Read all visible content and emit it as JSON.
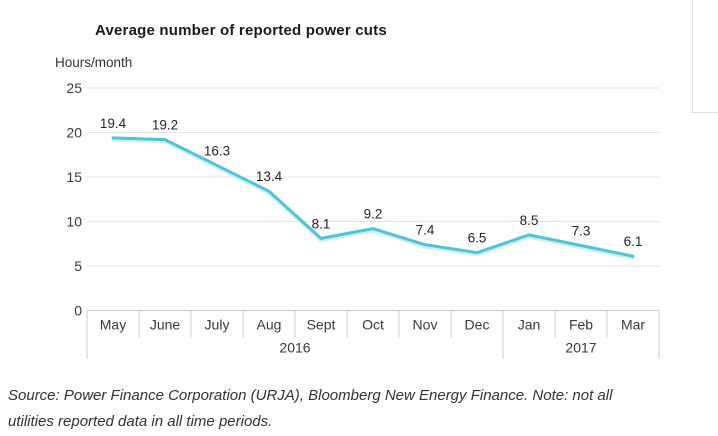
{
  "chart_data": {
    "type": "line",
    "title": "Average number of reported power cuts",
    "ylabel": "Hours/month",
    "xlabel": "",
    "categories": [
      "May",
      "June",
      "July",
      "Aug",
      "Sept",
      "Oct",
      "Nov",
      "Dec",
      "Jan",
      "Feb",
      "Mar"
    ],
    "year_groups": [
      {
        "label": "2016",
        "start": 0,
        "span": 8
      },
      {
        "label": "2017",
        "start": 8,
        "span": 3
      }
    ],
    "values": [
      19.4,
      19.2,
      16.3,
      13.4,
      8.1,
      9.2,
      7.4,
      6.5,
      8.5,
      7.3,
      6.1
    ],
    "data_labels": [
      "19.4",
      "19.2",
      "16.3",
      "13.4",
      "8.1",
      "9.2",
      "7.4",
      "6.5",
      "8.5",
      "7.3",
      "6.1"
    ],
    "y_ticks": [
      0,
      5,
      10,
      15,
      20,
      25
    ],
    "ylim": [
      0,
      25
    ],
    "grid": true,
    "legend_position": "none",
    "line_color": "#4ec3d9",
    "line_shadow_color": "#c3e9f1",
    "gridline_color": "#e3e3e3",
    "axis_border_color": "#c9c9c9",
    "tick_label_color": "#3a3a3a",
    "data_label_color": "#262626"
  },
  "footer": {
    "source_note": "Source: Power Finance Corporation (URJA), Bloomberg New Energy Finance. Note: not all utilities reported data in all time periods."
  }
}
